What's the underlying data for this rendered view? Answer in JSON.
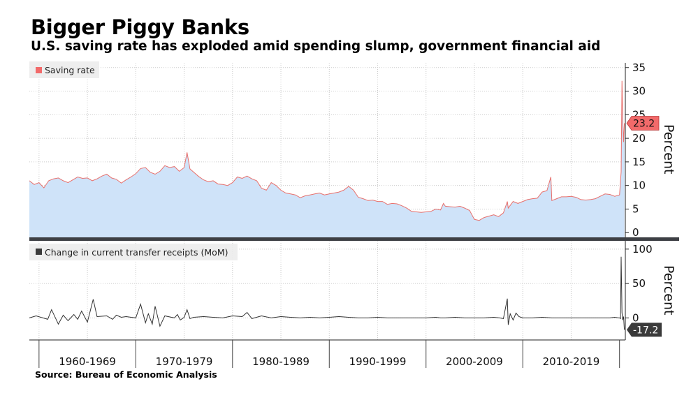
{
  "title": "Bigger Piggy Banks",
  "subtitle": "U.S. saving rate has exploded amid spending slump, government financial aid",
  "source": "Source: Bureau of Economic Analysis",
  "colors": {
    "saving_line": "#e8706c",
    "saving_fill": "#cfe3f9",
    "transfer_line": "#333333",
    "saving_tag": "#f26a6a",
    "transfer_tag": "#3a3a3a",
    "divider": "#3d3f44",
    "grid": "#cccccc"
  },
  "chart_data": [
    {
      "type": "area",
      "legend": "Saving rate",
      "legend_position": "top-left",
      "ylabel": "Percent",
      "y_axis_side": "right",
      "yticks": [
        0,
        5,
        10,
        15,
        20,
        25,
        30,
        35
      ],
      "ylim": [
        -1,
        36
      ],
      "xlim": [
        1959.0,
        2020.6
      ],
      "grid": true,
      "last_value_label": "23.2",
      "series": [
        {
          "name": "Saving rate",
          "x": [
            1959.0,
            1959.5,
            1960.0,
            1960.5,
            1961.0,
            1961.5,
            1962.0,
            1962.5,
            1963.0,
            1963.5,
            1964.0,
            1964.5,
            1965.0,
            1965.5,
            1966.0,
            1966.5,
            1967.0,
            1967.5,
            1968.0,
            1968.5,
            1969.0,
            1969.5,
            1970.0,
            1970.5,
            1971.0,
            1971.5,
            1972.0,
            1972.5,
            1973.0,
            1973.5,
            1974.0,
            1974.5,
            1975.0,
            1975.3,
            1975.6,
            1976.0,
            1976.5,
            1977.0,
            1977.5,
            1978.0,
            1978.5,
            1979.0,
            1979.5,
            1980.0,
            1980.5,
            1981.0,
            1981.5,
            1982.0,
            1982.5,
            1983.0,
            1983.5,
            1984.0,
            1984.5,
            1985.0,
            1985.5,
            1986.0,
            1986.5,
            1987.0,
            1987.5,
            1988.0,
            1988.5,
            1989.0,
            1989.5,
            1990.0,
            1990.5,
            1991.0,
            1991.5,
            1992.0,
            1992.5,
            1993.0,
            1993.5,
            1994.0,
            1994.5,
            1995.0,
            1995.5,
            1996.0,
            1996.5,
            1997.0,
            1997.5,
            1998.0,
            1998.5,
            1999.0,
            1999.5,
            2000.0,
            2000.5,
            2001.0,
            2001.5,
            2001.8,
            2002.0,
            2002.5,
            2003.0,
            2003.5,
            2004.0,
            2004.5,
            2005.0,
            2005.5,
            2006.0,
            2006.5,
            2007.0,
            2007.5,
            2008.0,
            2008.4,
            2008.5,
            2009.0,
            2009.5,
            2010.0,
            2010.5,
            2011.0,
            2011.5,
            2012.0,
            2012.5,
            2012.9,
            2013.0,
            2013.5,
            2014.0,
            2014.5,
            2015.0,
            2015.5,
            2016.0,
            2016.5,
            2017.0,
            2017.5,
            2018.0,
            2018.5,
            2019.0,
            2019.5,
            2020.0,
            2020.17,
            2020.25,
            2020.33,
            2020.42,
            2020.5
          ],
          "values": [
            11.0,
            10.2,
            10.6,
            9.5,
            11.0,
            11.4,
            11.6,
            11.0,
            10.6,
            11.2,
            11.8,
            11.5,
            11.6,
            11.0,
            11.4,
            12.0,
            12.4,
            11.6,
            11.3,
            10.5,
            11.2,
            11.8,
            12.5,
            13.6,
            13.8,
            12.8,
            12.4,
            13.0,
            14.2,
            13.8,
            14.0,
            13.0,
            13.8,
            17.0,
            13.5,
            12.8,
            11.9,
            11.2,
            10.8,
            11.0,
            10.3,
            10.2,
            10.0,
            10.6,
            11.8,
            11.5,
            12.0,
            11.4,
            11.0,
            9.4,
            9.0,
            10.6,
            10.0,
            9.0,
            8.4,
            8.2,
            8.0,
            7.4,
            7.8,
            8.0,
            8.2,
            8.4,
            8.0,
            8.2,
            8.4,
            8.6,
            9.0,
            9.8,
            9.0,
            7.5,
            7.2,
            6.8,
            6.9,
            6.6,
            6.6,
            6.0,
            6.2,
            6.1,
            5.7,
            5.2,
            4.5,
            4.4,
            4.3,
            4.4,
            4.5,
            5.0,
            4.8,
            6.2,
            5.6,
            5.5,
            5.4,
            5.6,
            5.2,
            4.7,
            2.8,
            2.6,
            3.2,
            3.5,
            3.8,
            3.4,
            4.2,
            6.6,
            5.2,
            6.6,
            6.2,
            6.6,
            7.0,
            7.2,
            7.3,
            8.6,
            8.9,
            11.8,
            6.8,
            7.2,
            7.6,
            7.6,
            7.7,
            7.5,
            7.0,
            6.9,
            7.0,
            7.2,
            7.7,
            8.2,
            8.1,
            7.7,
            8.0,
            12.9,
            32.2,
            24.0,
            19.2,
            23.2
          ]
        }
      ]
    },
    {
      "type": "line",
      "legend": "Change in current transfer receipts (MoM)",
      "legend_position": "top-left",
      "ylabel": "Percent",
      "y_axis_side": "right",
      "yticks": [
        0,
        50,
        100
      ],
      "ylim": [
        -32,
        112
      ],
      "xlim": [
        1959.0,
        2020.6
      ],
      "grid": true,
      "last_value_label": "-17.2",
      "categories": [
        "1960-1969",
        "1970-1979",
        "1980-1989",
        "1990-1999",
        "2000-2009",
        "2010-2019"
      ],
      "category_bounds": [
        [
          1960,
          1970
        ],
        [
          1970,
          1980
        ],
        [
          1980,
          1990
        ],
        [
          1990,
          2000
        ],
        [
          2000,
          2010
        ],
        [
          2010,
          2020
        ]
      ],
      "series": [
        {
          "name": "Change in current transfer receipts (MoM)",
          "x": [
            1959.0,
            1959.7,
            1960.9,
            1961.3,
            1962.0,
            1962.5,
            1963.0,
            1963.6,
            1964.0,
            1964.4,
            1965.0,
            1965.6,
            1966.0,
            1967.0,
            1967.6,
            1968.0,
            1968.5,
            1969.0,
            1970.0,
            1970.5,
            1971.0,
            1971.3,
            1971.7,
            1972.0,
            1972.5,
            1973.0,
            1974.0,
            1974.3,
            1974.6,
            1975.0,
            1975.3,
            1975.6,
            1976.0,
            1977.0,
            1978.0,
            1979.0,
            1980.0,
            1981.0,
            1981.5,
            1982.0,
            1983.0,
            1984.0,
            1985.0,
            1986.0,
            1987.0,
            1988.0,
            1989.0,
            1990.0,
            1991.0,
            1992.0,
            1993.0,
            1994.0,
            1995.0,
            1996.0,
            1997.0,
            1998.0,
            1999.0,
            2000.0,
            2001.0,
            2001.5,
            2002.0,
            2003.0,
            2004.0,
            2005.0,
            2006.0,
            2007.0,
            2007.6,
            2008.0,
            2008.4,
            2008.5,
            2008.7,
            2009.0,
            2009.3,
            2009.6,
            2010.0,
            2011.0,
            2012.0,
            2013.0,
            2014.0,
            2015.0,
            2016.0,
            2017.0,
            2018.0,
            2019.0,
            2019.5,
            2019.9,
            2020.0,
            2020.1,
            2020.17,
            2020.25,
            2020.33,
            2020.42,
            2020.5
          ],
          "values": [
            0,
            3,
            -2,
            12,
            -9,
            4,
            -4,
            5,
            -2,
            10,
            -6,
            27,
            2,
            3,
            -2,
            4,
            1,
            2,
            0,
            20,
            -7,
            6,
            -9,
            17,
            -12,
            3,
            0,
            5,
            -3,
            1,
            12,
            -1,
            1,
            2,
            1,
            0,
            3,
            2,
            8,
            -1,
            3,
            0,
            2,
            1,
            0,
            1,
            0,
            1,
            2,
            1,
            0,
            0,
            1,
            0,
            0,
            0,
            0,
            0,
            1,
            0,
            0,
            1,
            0,
            0,
            0,
            1,
            0,
            -1,
            28,
            -10,
            6,
            -3,
            7,
            2,
            0,
            0,
            1,
            0,
            0,
            0,
            0,
            0,
            0,
            0,
            1,
            0,
            0,
            -1,
            89,
            8,
            -3,
            2,
            -17.2
          ]
        }
      ]
    }
  ]
}
